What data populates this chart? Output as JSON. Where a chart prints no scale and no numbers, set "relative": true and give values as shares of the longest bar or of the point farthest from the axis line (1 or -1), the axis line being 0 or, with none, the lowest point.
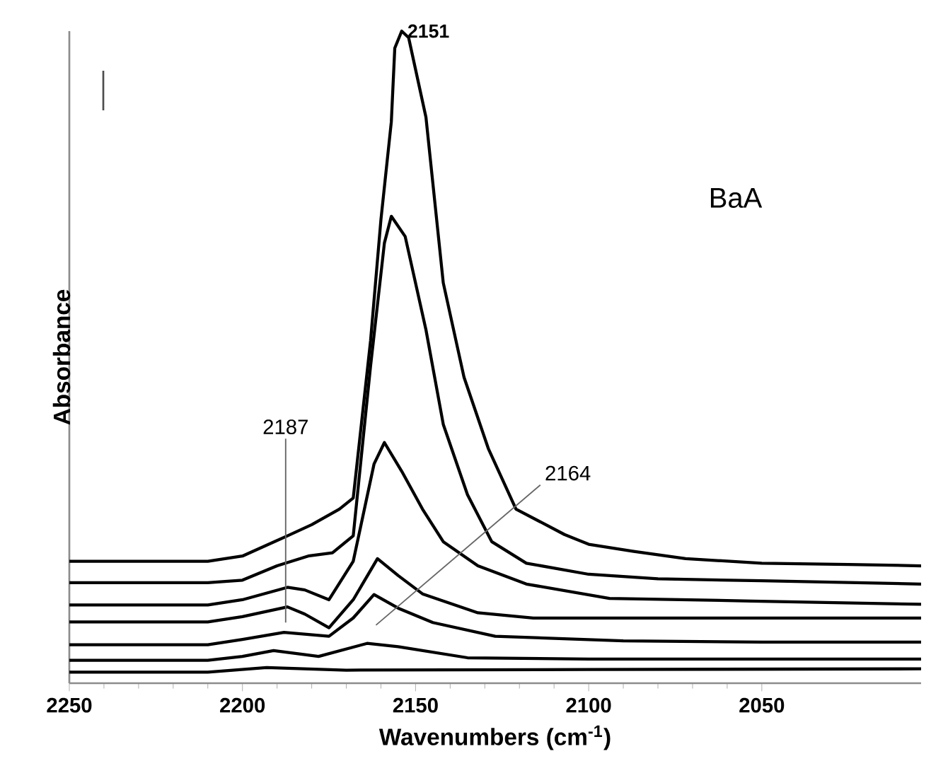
{
  "chart_data": {
    "type": "line",
    "xlabel": "Wavenumbers (cm$^{-1}$)",
    "ylabel": "Absorbance",
    "relative": true,
    "xlim": [
      2250,
      2004
    ],
    "xticks": [
      2250,
      2200,
      2150,
      2100,
      2050
    ],
    "series": [
      {
        "color": "#000000",
        "x": [
          2250,
          2210,
          2200,
          2187,
          2180,
          2172,
          2168,
          2163,
          2160,
          2157,
          2156,
          2154,
          2152,
          2147,
          2142,
          2136,
          2129,
          2121,
          2107,
          2100,
          2087,
          2072,
          2050,
          2025,
          2004
        ],
        "values": [
          0.187,
          0.187,
          0.195,
          0.226,
          0.243,
          0.267,
          0.284,
          0.525,
          0.711,
          0.861,
          0.974,
          1.0,
          0.99,
          0.868,
          0.614,
          0.469,
          0.36,
          0.267,
          0.228,
          0.213,
          0.202,
          0.191,
          0.184,
          0.182,
          0.18
        ]
      },
      {
        "color": "#000000",
        "x": [
          2250,
          2210,
          2200,
          2190,
          2181,
          2174,
          2168,
          2163,
          2159,
          2157,
          2153,
          2147,
          2142,
          2135,
          2128,
          2118,
          2100,
          2080,
          2050,
          2004
        ],
        "values": [
          0.154,
          0.154,
          0.158,
          0.18,
          0.195,
          0.2,
          0.226,
          0.486,
          0.675,
          0.716,
          0.685,
          0.542,
          0.397,
          0.289,
          0.217,
          0.184,
          0.167,
          0.16,
          0.157,
          0.152
        ]
      },
      {
        "color": "#000000",
        "x": [
          2250,
          2210,
          2200,
          2187,
          2182,
          2175,
          2168,
          2162,
          2159,
          2154,
          2148,
          2142,
          2132,
          2118,
          2094,
          2053,
          2004
        ],
        "values": [
          0.12,
          0.12,
          0.128,
          0.147,
          0.143,
          0.128,
          0.187,
          0.336,
          0.369,
          0.325,
          0.267,
          0.217,
          0.18,
          0.152,
          0.13,
          0.126,
          0.121
        ]
      },
      {
        "color": "#000000",
        "x": [
          2250,
          2210,
          2200,
          2187,
          2182,
          2175,
          2168,
          2161,
          2155,
          2148,
          2132,
          2116,
          2090,
          2050,
          2004
        ],
        "values": [
          0.094,
          0.094,
          0.102,
          0.117,
          0.106,
          0.085,
          0.128,
          0.191,
          0.165,
          0.137,
          0.108,
          0.1,
          0.1,
          0.1,
          0.1
        ]
      },
      {
        "color": "#000000",
        "x": [
          2250,
          2210,
          2200,
          2188,
          2175,
          2168,
          2162,
          2155,
          2145,
          2127,
          2090,
          2050,
          2004
        ],
        "values": [
          0.059,
          0.059,
          0.067,
          0.078,
          0.072,
          0.1,
          0.136,
          0.115,
          0.093,
          0.072,
          0.065,
          0.063,
          0.063
        ]
      },
      {
        "color": "#000000",
        "x": [
          2250,
          2210,
          2200,
          2191,
          2178,
          2164,
          2155,
          2135,
          2100,
          2050,
          2004
        ],
        "values": [
          0.035,
          0.035,
          0.041,
          0.05,
          0.041,
          0.061,
          0.056,
          0.039,
          0.037,
          0.037,
          0.037
        ]
      },
      {
        "color": "#000000",
        "x": [
          2250,
          2210,
          2193,
          2170,
          2100,
          2004
        ],
        "values": [
          0.017,
          0.017,
          0.024,
          0.02,
          0.021,
          0.022
        ]
      }
    ],
    "annotations": [
      "2187",
      "2164",
      {
        "text": "2151",
        "x": 2153,
        "y": 1.0
      },
      "BaA"
    ]
  }
}
